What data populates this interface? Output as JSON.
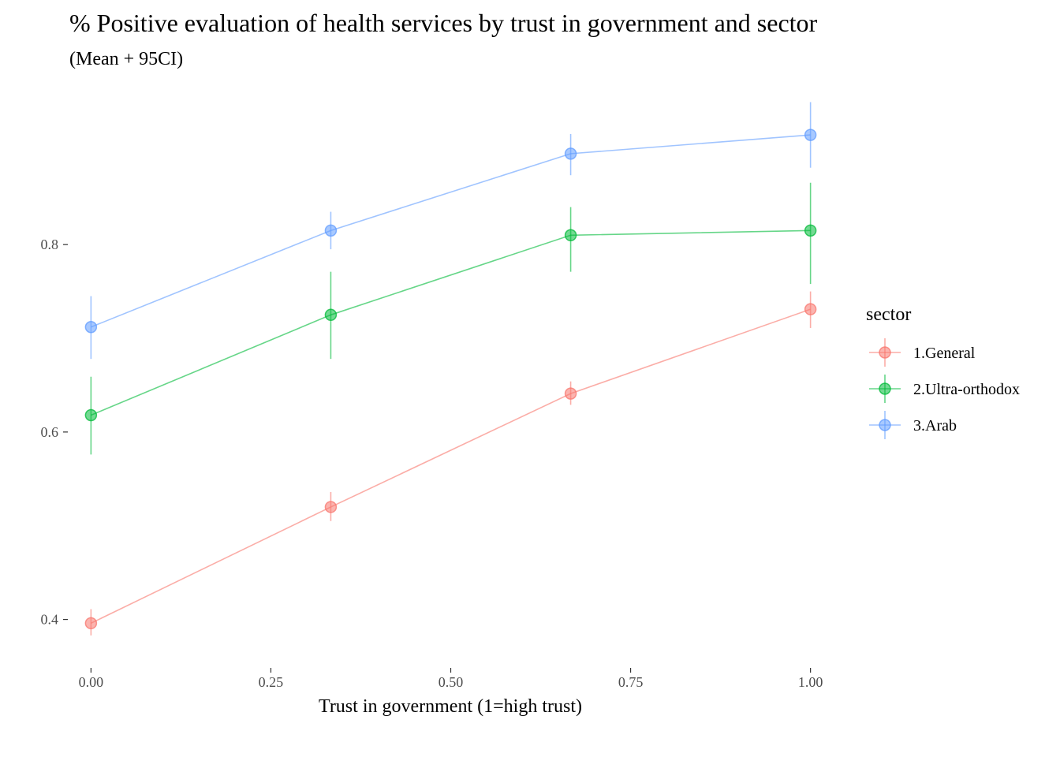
{
  "chart_data": {
    "type": "line",
    "title": "% Positive evaluation of health services by trust in government and sector",
    "subtitle": "(Mean + 95CI)",
    "xlabel": "Trust in government (1=high trust)",
    "ylabel": "",
    "x": [
      0,
      0.3333,
      0.6667,
      1.0
    ],
    "xlim": [
      -0.03,
      1.03
    ],
    "ylim": [
      0.35,
      0.96
    ],
    "xticks": [
      0,
      0.25,
      0.5,
      0.75,
      1.0
    ],
    "xtick_labels": [
      "0.00",
      "0.25",
      "0.50",
      "0.75",
      "1.00"
    ],
    "yticks": [
      0.4,
      0.6,
      0.8
    ],
    "ytick_labels": [
      "0.4",
      "0.6",
      "0.8"
    ],
    "grid": false,
    "legend": {
      "title": "sector",
      "placement": "right"
    },
    "series": [
      {
        "name": "1.General",
        "color": "#F8766D",
        "values": [
          0.396,
          0.52,
          0.641,
          0.731
        ],
        "ci_low": [
          0.383,
          0.505,
          0.629,
          0.711
        ],
        "ci_high": [
          0.411,
          0.536,
          0.654,
          0.75
        ]
      },
      {
        "name": "2.Ultra-orthodox",
        "color": "#00BA38",
        "values": [
          0.618,
          0.725,
          0.81,
          0.815
        ],
        "ci_low": [
          0.576,
          0.678,
          0.771,
          0.758
        ],
        "ci_high": [
          0.659,
          0.771,
          0.84,
          0.866
        ]
      },
      {
        "name": "3.Arab",
        "color": "#619CFF",
        "values": [
          0.712,
          0.815,
          0.897,
          0.917
        ],
        "ci_low": [
          0.678,
          0.795,
          0.874,
          0.882
        ],
        "ci_high": [
          0.745,
          0.835,
          0.918,
          0.952
        ]
      }
    ]
  }
}
